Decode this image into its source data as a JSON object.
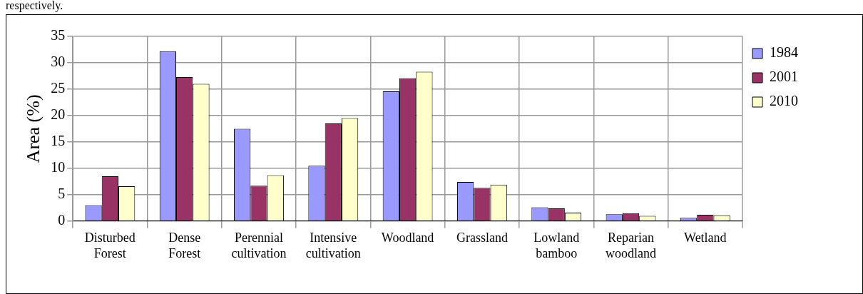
{
  "chart_data": {
    "type": "bar",
    "ylabel": "Area (%)",
    "annotations": [
      "respectively."
    ],
    "categories": [
      "Disturbed Forest",
      "Dense Forest",
      "Perennial cultivation",
      "Intensive cultivation",
      "Woodland",
      "Grassland",
      "Lowland bamboo",
      "Reparian woodland",
      "Wetland"
    ],
    "series": [
      {
        "name": "1984",
        "color": "#9999ff",
        "values": [
          3.0,
          32.2,
          17.5,
          10.5,
          24.6,
          7.4,
          2.6,
          1.3,
          0.6
        ]
      },
      {
        "name": "2001",
        "color": "#993366",
        "values": [
          8.5,
          27.3,
          6.7,
          18.5,
          27.1,
          6.3,
          2.4,
          1.5,
          1.2
        ]
      },
      {
        "name": "2010",
        "color": "#ffffcc",
        "values": [
          6.6,
          26.0,
          8.7,
          19.5,
          28.3,
          6.9,
          1.6,
          1.0,
          1.1
        ]
      }
    ],
    "ylim": [
      0,
      35
    ],
    "yticks": [
      0,
      5,
      10,
      15,
      20,
      25,
      30,
      35
    ],
    "grid": true,
    "legend": "top right"
  }
}
